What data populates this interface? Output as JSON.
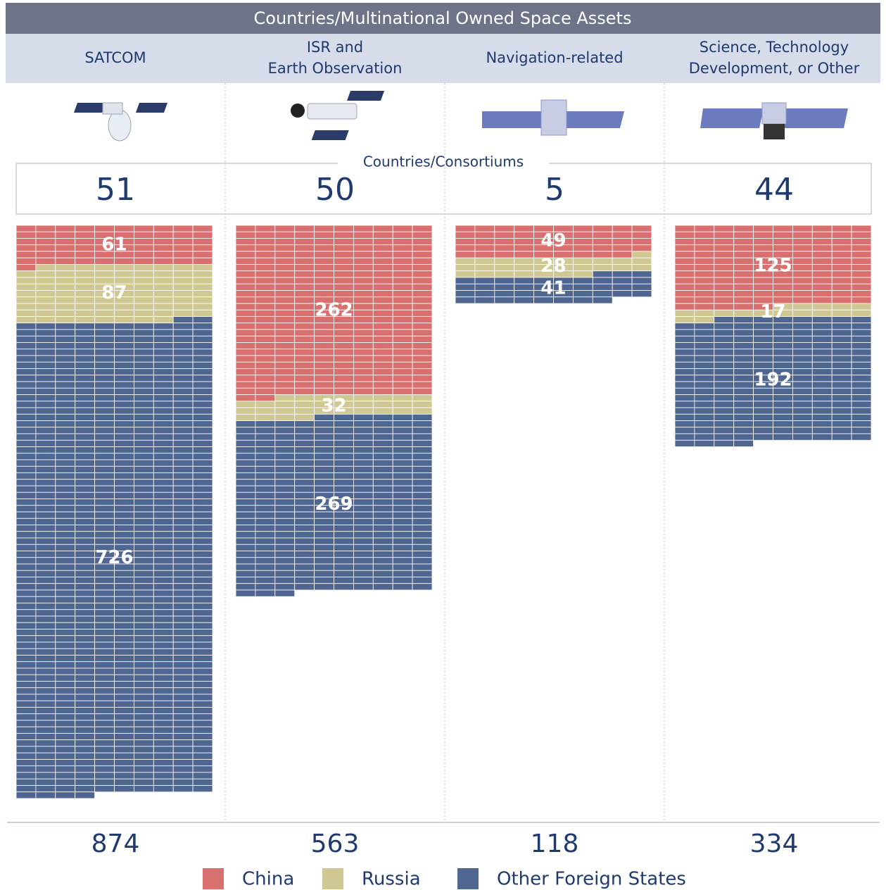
{
  "chart_data": {
    "type": "waffle",
    "title": "Countries/Multinational Owned Space Assets",
    "count_label": "Countries/Consortiums",
    "categories": [
      "SATCOM",
      "ISR and\nEarth Observation",
      "Navigation-related",
      "Science, Technology\nDevelopment, or Other"
    ],
    "countries": [
      51,
      50,
      5,
      44
    ],
    "totals": [
      874,
      563,
      118,
      334
    ],
    "series": [
      {
        "name": "China",
        "color": "#d7706f",
        "values": [
          61,
          262,
          49,
          125
        ]
      },
      {
        "name": "Russia",
        "color": "#cfc893",
        "values": [
          87,
          32,
          28,
          17
        ]
      },
      {
        "name": "Other Foreign States",
        "color": "#4f6691",
        "values": [
          726,
          269,
          41,
          192
        ]
      }
    ]
  }
}
